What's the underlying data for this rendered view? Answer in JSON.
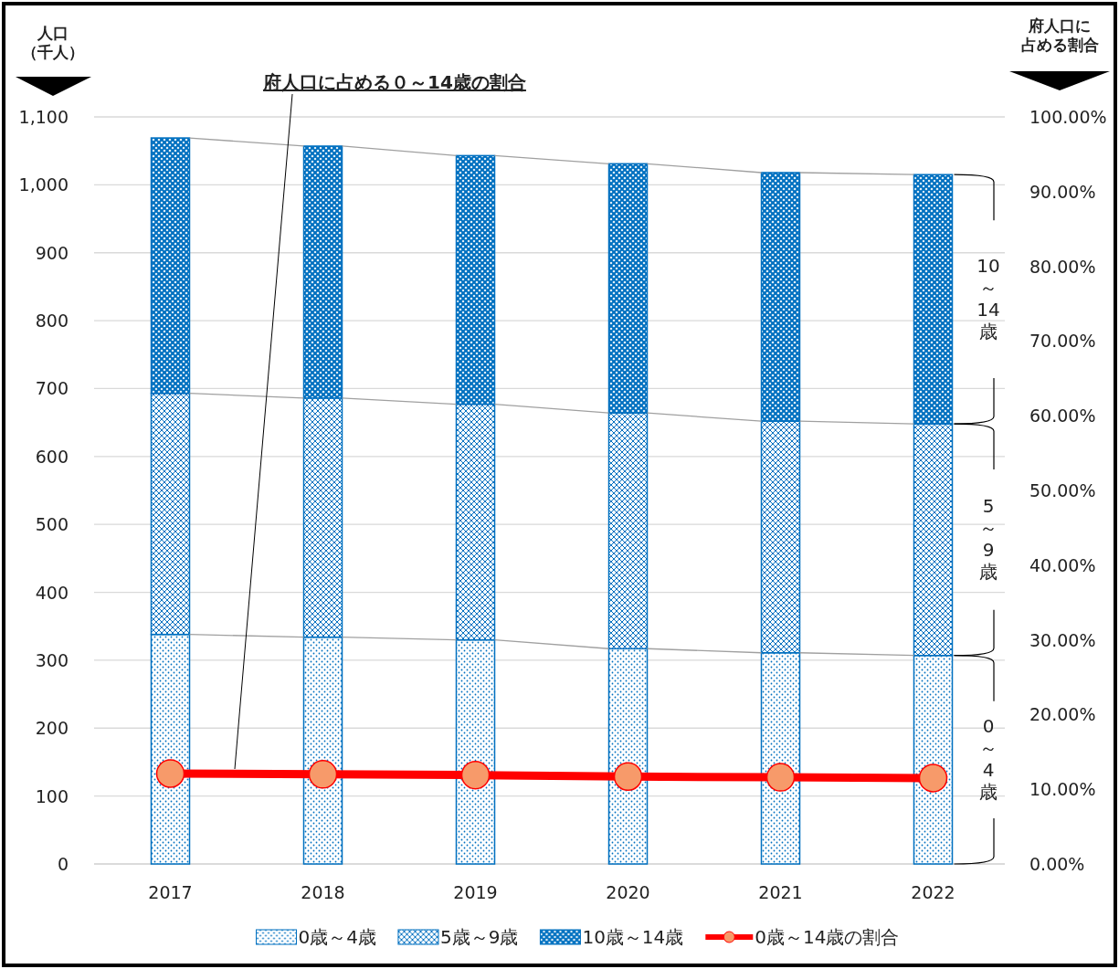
{
  "chart_data": {
    "type": "bar",
    "stacked": true,
    "categories": [
      "2017",
      "2018",
      "2019",
      "2020",
      "2021",
      "2022"
    ],
    "ylabel": "人口（千人）",
    "y2label": "府人口に占める割合",
    "ylim": [
      0,
      1100
    ],
    "yticks": [
      0,
      100,
      200,
      300,
      400,
      500,
      600,
      700,
      800,
      900,
      {
        "value": 1000,
        "label": "1,000"
      },
      {
        "value": 1100,
        "label": "1,100"
      }
    ],
    "y2lim": [
      0,
      100
    ],
    "y2ticks": [
      {
        "value": 0,
        "label": "0.00%"
      },
      {
        "value": 10,
        "label": "10.00%"
      },
      {
        "value": 20,
        "label": "20.00%"
      },
      {
        "value": 30,
        "label": "30.00%"
      },
      {
        "value": 40,
        "label": "40.00%"
      },
      {
        "value": 50,
        "label": "50.00%"
      },
      {
        "value": 60,
        "label": "60.00%"
      },
      {
        "value": 70,
        "label": "70.00%"
      },
      {
        "value": 80,
        "label": "80.00%"
      },
      {
        "value": 90,
        "label": "90.00%"
      },
      {
        "value": 100,
        "label": "100.00%"
      }
    ],
    "grid": "y",
    "legend": "bottom",
    "series": [
      {
        "name": "0歳～4歳",
        "color": "#0070c0",
        "values": [
          338,
          334,
          330,
          317,
          311,
          307
        ]
      },
      {
        "name": "5歳～9歳",
        "color": "#0070c0",
        "values": [
          355,
          352,
          347,
          347,
          341,
          341
        ]
      },
      {
        "name": "10歳～14歳",
        "color": "#0070c0",
        "values": [
          376,
          371,
          366,
          367,
          366,
          367
        ]
      },
      {
        "name": "0歳～14歳の割合",
        "type": "line",
        "axis": "y2",
        "color": "#ff0000",
        "marker": "circle",
        "values": [
          12.1,
          12.0,
          11.9,
          11.7,
          11.6,
          11.5
        ]
      }
    ],
    "annotations": [
      "府人口に占める０～14歳の割合",
      {
        "text": "0～4歳",
        "x": "2022",
        "y": 153
      },
      "5～9歳",
      "10～14歳"
    ]
  }
}
